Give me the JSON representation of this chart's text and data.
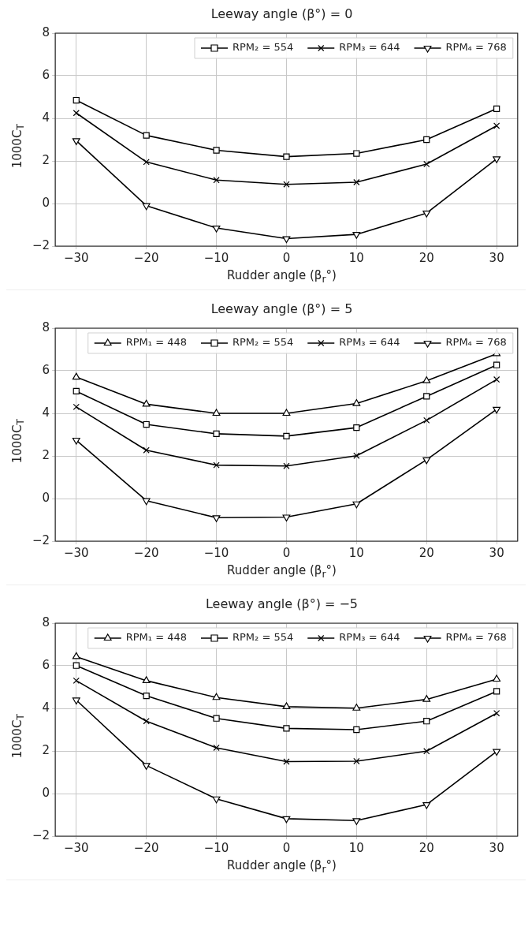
{
  "chart_data": [
    {
      "type": "line",
      "title": "Leeway angle (β°) = 0",
      "xlabel": "Rudder angle (β$_{r}$°)",
      "ylabel": "1000C$_{T}$",
      "x": [
        -30,
        -20,
        -10,
        0,
        10,
        20,
        30
      ],
      "xlim": [
        -33,
        33
      ],
      "ylim": [
        -2,
        8
      ],
      "xticks": [
        -30,
        -20,
        -10,
        0,
        10,
        20,
        30
      ],
      "yticks": [
        -2,
        0,
        2,
        4,
        6,
        8
      ],
      "grid": true,
      "legend": "top right",
      "series": [
        {
          "name": "RPM₂ = 554",
          "color": "#000000",
          "marker": "square",
          "values": [
            4.85,
            3.2,
            2.5,
            2.2,
            2.35,
            3.0,
            4.45
          ]
        },
        {
          "name": "RPM₃ = 644",
          "color": "#000000",
          "marker": "cross",
          "values": [
            4.25,
            1.95,
            1.1,
            0.9,
            1.0,
            1.85,
            3.65
          ]
        },
        {
          "name": "RPM₄ = 768",
          "color": "#000000",
          "marker": "triangle-down",
          "values": [
            2.95,
            -0.1,
            -1.15,
            -1.65,
            -1.45,
            -0.45,
            2.1
          ]
        }
      ]
    },
    {
      "type": "line",
      "title": "Leeway angle (β°) = 5",
      "xlabel": "Rudder angle (β$_{r}$°)",
      "ylabel": "1000C$_{T}$",
      "x": [
        -30,
        -20,
        -10,
        0,
        10,
        20,
        30
      ],
      "xlim": [
        -33,
        33
      ],
      "ylim": [
        -2,
        8
      ],
      "xticks": [
        -30,
        -20,
        -10,
        0,
        10,
        20,
        30
      ],
      "yticks": [
        -2,
        0,
        2,
        4,
        6,
        8
      ],
      "grid": true,
      "legend": "top right",
      "series": [
        {
          "name": "RPM₁ = 448",
          "color": "#000000",
          "marker": "triangle",
          "values": [
            5.7,
            4.43,
            4.0,
            4.0,
            4.46,
            5.53,
            6.8
          ]
        },
        {
          "name": "RPM₂ = 554",
          "color": "#000000",
          "marker": "square",
          "values": [
            5.04,
            3.48,
            3.04,
            2.93,
            3.33,
            4.8,
            6.27
          ]
        },
        {
          "name": "RPM₃ = 644",
          "color": "#000000",
          "marker": "cross",
          "values": [
            4.3,
            2.27,
            1.57,
            1.53,
            2.01,
            3.67,
            5.59
          ]
        },
        {
          "name": "RPM₄ = 768",
          "color": "#000000",
          "marker": "triangle-down",
          "values": [
            2.74,
            -0.1,
            -0.9,
            -0.87,
            -0.25,
            1.82,
            4.19
          ]
        }
      ]
    },
    {
      "type": "line",
      "title": "Leeway angle (β°) = −5",
      "xlabel": "Rudder angle (β$_{r}$°)",
      "ylabel": "1000C$_{T}$",
      "x": [
        -30,
        -20,
        -10,
        0,
        10,
        20,
        30
      ],
      "xlim": [
        -33,
        33
      ],
      "ylim": [
        -2,
        8
      ],
      "xticks": [
        -30,
        -20,
        -10,
        0,
        10,
        20,
        30
      ],
      "yticks": [
        -2,
        0,
        2,
        4,
        6,
        8
      ],
      "grid": true,
      "legend": "top right",
      "series": [
        {
          "name": "RPM₁ = 448",
          "color": "#000000",
          "marker": "triangle",
          "values": [
            6.43,
            5.3,
            4.51,
            4.08,
            4.01,
            4.42,
            5.37
          ]
        },
        {
          "name": "RPM₂ = 554",
          "color": "#000000",
          "marker": "square",
          "values": [
            6.01,
            4.59,
            3.53,
            3.06,
            3.0,
            3.4,
            4.8
          ]
        },
        {
          "name": "RPM₃ = 644",
          "color": "#000000",
          "marker": "cross",
          "values": [
            5.3,
            3.4,
            2.15,
            1.5,
            1.52,
            1.99,
            3.77
          ]
        },
        {
          "name": "RPM₄ = 768",
          "color": "#000000",
          "marker": "triangle-down",
          "values": [
            4.39,
            1.32,
            -0.25,
            -1.18,
            -1.27,
            -0.52,
            1.98
          ]
        }
      ]
    }
  ]
}
